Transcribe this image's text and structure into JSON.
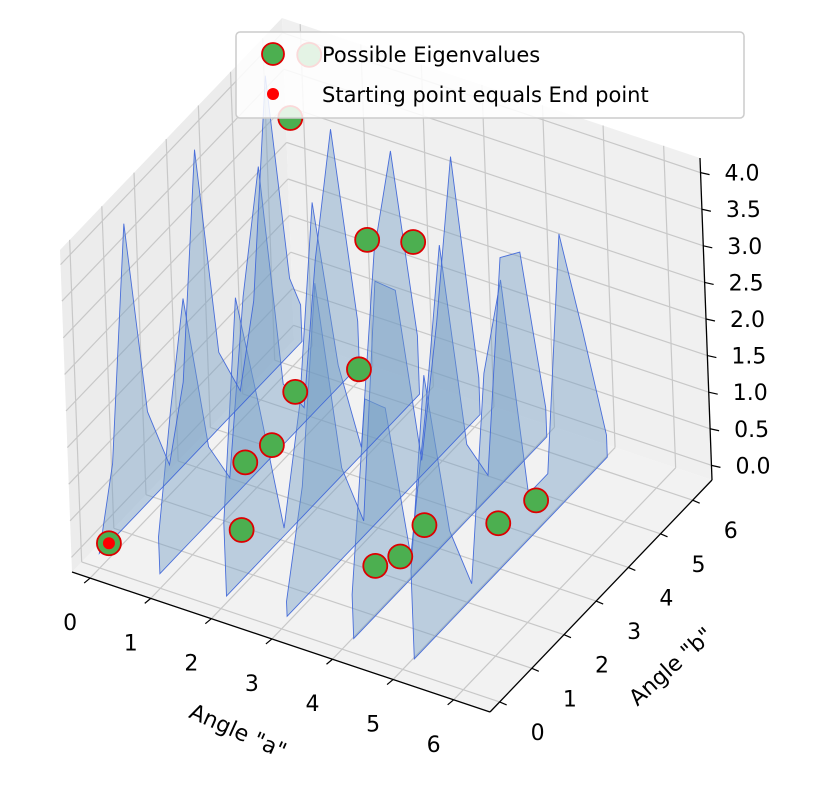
{
  "chart_data": {
    "type": "scatter",
    "projection": "3d",
    "title": "",
    "xlabel": "Angle \"a\"",
    "ylabel": "Angle \"b\"",
    "zlabel": "",
    "xlim": [
      -0.3,
      6.6
    ],
    "ylim": [
      -0.3,
      6.6
    ],
    "zlim": [
      -0.2,
      4.2
    ],
    "x_ticks": [
      0,
      1,
      2,
      3,
      4,
      5,
      6
    ],
    "y_ticks": [
      0,
      1,
      2,
      3,
      4,
      5,
      6
    ],
    "z_ticks": [
      0.0,
      0.5,
      1.0,
      1.5,
      2.0,
      2.5,
      3.0,
      3.5,
      4.0
    ],
    "z_tick_labels": [
      "0.0",
      "0.5",
      "1.0",
      "1.5",
      "2.0",
      "2.5",
      "3.0",
      "3.5",
      "4.0"
    ],
    "grid": true,
    "legend": {
      "position": "top-right",
      "entries": [
        {
          "label": "Possible Eigenvalues",
          "marker": "circle",
          "color": "#4caf50",
          "edge": "#dd0000"
        },
        {
          "label": "Starting point equals End point",
          "marker": "dot",
          "color": "#ff0000"
        }
      ]
    },
    "colors": {
      "surface": "#6f9bc3",
      "surface_edge": "#3a62d8",
      "points": "#4caf50",
      "point_edge": "#dd0000",
      "start": "#ff0000"
    },
    "surface_traces": [
      {
        "a": 0.0,
        "points": [
          [
            0,
            0.0
          ],
          [
            0.5,
            1.0
          ],
          [
            1.1,
            4.0
          ],
          [
            1.6,
            1.2
          ],
          [
            2.2,
            0.2
          ],
          [
            2.7,
            1.1
          ],
          [
            3.3,
            4.0
          ],
          [
            3.8,
            1.0
          ],
          [
            4.4,
            0.2
          ],
          [
            4.9,
            1.2
          ],
          [
            5.5,
            4.0
          ],
          [
            6.0,
            1.0
          ],
          [
            6.3,
            0.5
          ]
        ]
      },
      {
        "a": 1.0,
        "points": [
          [
            0,
            0.5
          ],
          [
            0.5,
            2.0
          ],
          [
            1.0,
            3.3
          ],
          [
            1.6,
            1.0
          ],
          [
            2.2,
            0.3
          ],
          [
            2.8,
            2.5
          ],
          [
            3.4,
            4.0
          ],
          [
            3.9,
            0.8
          ],
          [
            4.5,
            0.2
          ],
          [
            5.0,
            2.0
          ],
          [
            5.6,
            3.5
          ],
          [
            6.2,
            0.6
          ]
        ]
      },
      {
        "a": 2.1,
        "points": [
          [
            0,
            1.0
          ],
          [
            0.6,
            3.8
          ],
          [
            1.2,
            2.0
          ],
          [
            1.8,
            0.1
          ],
          [
            2.4,
            1.5
          ],
          [
            3.0,
            4.0
          ],
          [
            3.6,
            1.5
          ],
          [
            4.2,
            0.1
          ],
          [
            4.8,
            2.5
          ],
          [
            5.4,
            3.6
          ],
          [
            6.0,
            0.8
          ]
        ]
      },
      {
        "a": 3.1,
        "points": [
          [
            0,
            0.2
          ],
          [
            0.6,
            1.5
          ],
          [
            1.2,
            4.0
          ],
          [
            1.8,
            1.2
          ],
          [
            2.4,
            0.2
          ],
          [
            3.0,
            3.2
          ],
          [
            3.6,
            2.8
          ],
          [
            4.2,
            0.2
          ],
          [
            4.8,
            1.8
          ],
          [
            5.4,
            3.8
          ],
          [
            6.0,
            0.5
          ]
        ]
      },
      {
        "a": 4.2,
        "points": [
          [
            0,
            0.6
          ],
          [
            0.6,
            3.0
          ],
          [
            1.2,
            2.6
          ],
          [
            1.8,
            0.3
          ],
          [
            2.4,
            2.0
          ],
          [
            3.0,
            4.0
          ],
          [
            3.6,
            1.0
          ],
          [
            4.2,
            0.3
          ],
          [
            4.8,
            3.0
          ],
          [
            5.4,
            2.8
          ],
          [
            6.0,
            0.4
          ]
        ]
      },
      {
        "a": 5.2,
        "points": [
          [
            0,
            1.2
          ],
          [
            0.6,
            3.6
          ],
          [
            1.2,
            1.2
          ],
          [
            1.8,
            0.2
          ],
          [
            2.4,
            2.8
          ],
          [
            3.0,
            3.8
          ],
          [
            3.6,
            0.6
          ],
          [
            4.2,
            0.6
          ],
          [
            4.8,
            3.6
          ],
          [
            5.4,
            2.0
          ],
          [
            6.0,
            0.3
          ]
        ]
      }
    ],
    "series": [
      {
        "name": "Possible Eigenvalues",
        "points": [
          {
            "x": 0.0,
            "y": 0.3,
            "z": 0.0
          },
          {
            "x": 0.0,
            "y": 6.2,
            "z": 3.1
          },
          {
            "x": 0.3,
            "y": 6.3,
            "z": 4.0
          },
          {
            "x": 1.5,
            "y": 1.6,
            "z": 0.0
          },
          {
            "x": 1.1,
            "y": 2.5,
            "z": 0.4
          },
          {
            "x": 1.5,
            "y": 2.6,
            "z": 0.7
          },
          {
            "x": 1.7,
            "y": 3.0,
            "z": 1.3
          },
          {
            "x": 2.5,
            "y": 3.5,
            "z": 1.6
          },
          {
            "x": 1.6,
            "y": 5.5,
            "z": 2.2
          },
          {
            "x": 2.2,
            "y": 5.8,
            "z": 2.2
          },
          {
            "x": 3.6,
            "y": 1.8,
            "z": 0.0
          },
          {
            "x": 3.8,
            "y": 2.2,
            "z": 0.0
          },
          {
            "x": 4.0,
            "y": 2.6,
            "z": 0.3
          },
          {
            "x": 4.9,
            "y": 3.2,
            "z": 0.3
          },
          {
            "x": 5.1,
            "y": 4.0,
            "z": 0.3
          }
        ]
      },
      {
        "name": "Starting point equals End point",
        "points": [
          {
            "x": 0.0,
            "y": 0.3,
            "z": 0.0
          }
        ]
      }
    ]
  }
}
